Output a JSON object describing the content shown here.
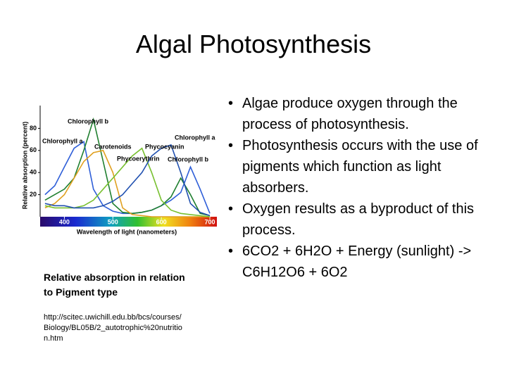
{
  "title": "Algal Photosynthesis",
  "bullets": [
    "Algae produce oxygen through the process of photosynthesis.",
    "Photosynthesis occurs with the use of pigments which function as light absorbers.",
    "Oxygen results as a byproduct of this process.",
    "6CO2 + 6H2O + Energy (sunlight) -> C6H12O6  + 6O2"
  ],
  "caption": "Relative absorption in relation to Pigment type",
  "source": "http://scitec.uwichill.edu.bb/bcs/courses/Biology/BL05B/2_autotrophic%20nutrition.htm",
  "chart_data": {
    "type": "line",
    "x_label": "Wavelength of light (nanometers)",
    "y_label": "Relative absorption (percent)",
    "x": [
      360,
      380,
      400,
      420,
      440,
      460,
      480,
      500,
      520,
      540,
      560,
      580,
      600,
      620,
      640,
      660,
      680,
      700
    ],
    "xlim": [
      350,
      700
    ],
    "xticks": [
      400,
      500,
      600,
      700
    ],
    "ylim": [
      0,
      100
    ],
    "yticks": [
      20,
      40,
      60,
      80
    ],
    "series": [
      {
        "name": "Chlorophyll a",
        "color": "#2f5fd8",
        "values": [
          20,
          28,
          45,
          62,
          68,
          25,
          10,
          5,
          3,
          3,
          4,
          6,
          10,
          15,
          22,
          45,
          25,
          3
        ]
      },
      {
        "name": "Chlorophyll b",
        "color": "#1f7f2f",
        "values": [
          15,
          20,
          25,
          35,
          60,
          88,
          50,
          12,
          4,
          3,
          4,
          6,
          10,
          18,
          35,
          20,
          3,
          1
        ]
      },
      {
        "name": "Carotenoids",
        "color": "#e0a020",
        "values": [
          8,
          12,
          20,
          35,
          50,
          58,
          60,
          40,
          8,
          2,
          1,
          0,
          0,
          0,
          0,
          0,
          0,
          0
        ]
      },
      {
        "name": "Phycoerythrin",
        "color": "#78c030",
        "values": [
          10,
          8,
          8,
          8,
          10,
          15,
          25,
          35,
          45,
          55,
          62,
          40,
          15,
          6,
          3,
          2,
          1,
          0
        ]
      },
      {
        "name": "Phycocyanin",
        "color": "#2050b0",
        "values": [
          12,
          10,
          10,
          8,
          8,
          8,
          10,
          14,
          20,
          30,
          40,
          55,
          62,
          65,
          40,
          12,
          4,
          1
        ]
      }
    ]
  }
}
